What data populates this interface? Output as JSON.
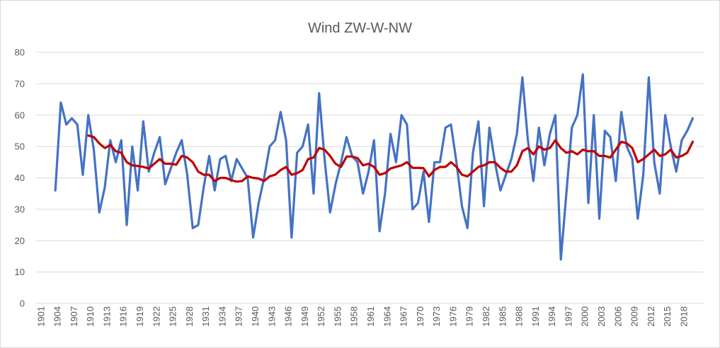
{
  "chart_data": {
    "type": "line",
    "title": "Wind ZW-W-NW",
    "xlabel": "",
    "ylabel": "",
    "ylim": [
      0,
      80
    ],
    "yticks": [
      0,
      10,
      20,
      30,
      40,
      50,
      60,
      70,
      80
    ],
    "grid": "horizontal",
    "legend": "none",
    "x": [
      1901,
      1902,
      1903,
      1904,
      1905,
      1906,
      1907,
      1908,
      1909,
      1910,
      1911,
      1912,
      1913,
      1914,
      1915,
      1916,
      1917,
      1918,
      1919,
      1920,
      1921,
      1922,
      1923,
      1924,
      1925,
      1926,
      1927,
      1928,
      1929,
      1930,
      1931,
      1932,
      1933,
      1934,
      1935,
      1936,
      1937,
      1938,
      1939,
      1940,
      1941,
      1942,
      1943,
      1944,
      1945,
      1946,
      1947,
      1948,
      1949,
      1950,
      1951,
      1952,
      1953,
      1954,
      1955,
      1956,
      1957,
      1958,
      1959,
      1960,
      1961,
      1962,
      1963,
      1964,
      1965,
      1966,
      1967,
      1968,
      1969,
      1970,
      1971,
      1972,
      1973,
      1974,
      1975,
      1976,
      1977,
      1978,
      1979,
      1980,
      1981,
      1982,
      1983,
      1984,
      1985,
      1986,
      1987,
      1988,
      1989,
      1990,
      1991,
      1992,
      1993,
      1994,
      1995,
      1996,
      1997,
      1998,
      1999,
      2000,
      2001,
      2002,
      2003,
      2004,
      2005,
      2006,
      2007,
      2008,
      2009,
      2010,
      2011,
      2012,
      2013,
      2014,
      2015,
      2016,
      2017,
      2018,
      2019,
      2020,
      2021
    ],
    "xtick_labels": [
      "1901",
      "1904",
      "1907",
      "1910",
      "1913",
      "1916",
      "1919",
      "1922",
      "1925",
      "1928",
      "1931",
      "1934",
      "1937",
      "1940",
      "1943",
      "1946",
      "1949",
      "1952",
      "1955",
      "1958",
      "1961",
      "1964",
      "1967",
      "1970",
      "1973",
      "1976",
      "1979",
      "1982",
      "1985",
      "1988",
      "1991",
      "1994",
      "1997",
      "2000",
      "2003",
      "2006",
      "2009",
      "2012",
      "2015",
      "2018"
    ],
    "series": [
      {
        "color": "#4472c4",
        "values": [
          null,
          null,
          null,
          36,
          64,
          57,
          59,
          57,
          41,
          60,
          49,
          29,
          37,
          52,
          45,
          52,
          25,
          50,
          36,
          58,
          42,
          48,
          53,
          38,
          43,
          48,
          52,
          41,
          24,
          25,
          37,
          47,
          36,
          46,
          47,
          39,
          46,
          43,
          40,
          21,
          32,
          40,
          50,
          52,
          61,
          52,
          21,
          48,
          50,
          57,
          35,
          67,
          46,
          29,
          38,
          45,
          53,
          47,
          45,
          35,
          42,
          52,
          23,
          35,
          54,
          45,
          60,
          57,
          30,
          32,
          42,
          26,
          45,
          45,
          56,
          57,
          45,
          31,
          24,
          48,
          58,
          31,
          56,
          45,
          36,
          41,
          46,
          54,
          72,
          52,
          39,
          56,
          44,
          54,
          60,
          14,
          35,
          56,
          60,
          73,
          32,
          60,
          27,
          55,
          53,
          39,
          61,
          50,
          46,
          27,
          41,
          72,
          45,
          35,
          60,
          50,
          42,
          52,
          55,
          59,
          null
        ]
      },
      {
        "color": "#c00000",
        "values": [
          null,
          null,
          null,
          null,
          null,
          null,
          null,
          null,
          null,
          53.5,
          53,
          51,
          49.5,
          50.5,
          48.5,
          48,
          45,
          44,
          43.8,
          43.5,
          43,
          44.5,
          46,
          44.5,
          44.5,
          44.2,
          47,
          46.5,
          45,
          42,
          41,
          41,
          39,
          40,
          40,
          39.3,
          38.8,
          39,
          40.5,
          40,
          39.8,
          39,
          40.5,
          41,
          42.5,
          43.5,
          41,
          41.5,
          42.5,
          46,
          46.5,
          49.5,
          49,
          47,
          44.5,
          43.5,
          46.8,
          46.8,
          46.3,
          44,
          44.5,
          43.5,
          41,
          41.5,
          43,
          43.5,
          44,
          45,
          43.2,
          43.2,
          43.1,
          40.5,
          42.5,
          43.5,
          43.5,
          45,
          43.5,
          41,
          40.5,
          42,
          43.5,
          44,
          45,
          45,
          43.2,
          42,
          42,
          44,
          48.5,
          49.5,
          47.5,
          50,
          49,
          49.5,
          52,
          49.5,
          48,
          48.5,
          47.5,
          49,
          48.5,
          48.5,
          47,
          47,
          46.5,
          49,
          51.5,
          51,
          49.5,
          45,
          46,
          47.5,
          49,
          47,
          47.5,
          49,
          46.5,
          47,
          48,
          51.5,
          null
        ]
      }
    ]
  }
}
